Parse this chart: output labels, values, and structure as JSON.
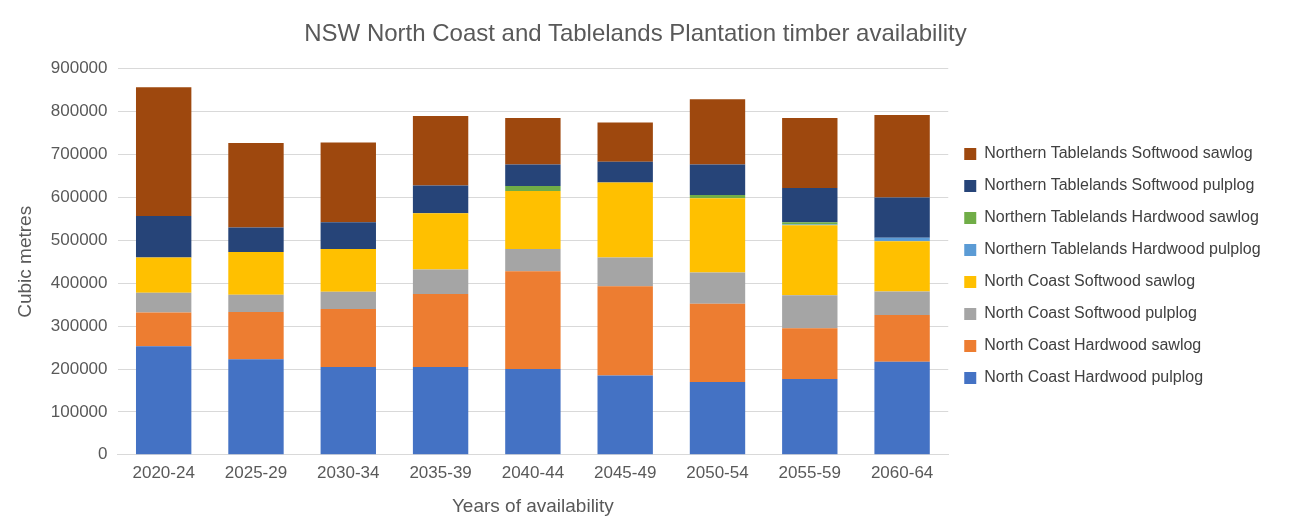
{
  "chart_data": {
    "type": "bar",
    "title": "NSW North Coast and Tablelands Plantation timber availability",
    "xlabel": "Years of availability",
    "ylabel": "Cubic metres",
    "categories": [
      "2020-24",
      "2025-29",
      "2030-34",
      "2035-39",
      "2040-44",
      "2045-49",
      "2050-54",
      "2055-59",
      "2060-64"
    ],
    "stacked": true,
    "ylim": [
      0,
      900000
    ],
    "yticks": [
      0,
      100000,
      200000,
      300000,
      400000,
      500000,
      600000,
      700000,
      800000,
      900000
    ],
    "grid": "y",
    "legend": "right",
    "series": [
      {
        "name": "North Coast Hardwood pulplog",
        "color": "#4472c4",
        "values": [
          253000,
          223000,
          205000,
          205000,
          200000,
          185000,
          170000,
          177000,
          217000
        ]
      },
      {
        "name": "North Coast Hardwood sawlog",
        "color": "#ed7d31",
        "values": [
          79000,
          110000,
          135000,
          170000,
          228000,
          208000,
          182000,
          118000,
          109000
        ]
      },
      {
        "name": "North Coast Softwood pulplog",
        "color": "#a5a5a5",
        "values": [
          46000,
          40000,
          40000,
          57000,
          52000,
          67000,
          73000,
          77000,
          55000
        ]
      },
      {
        "name": "North Coast Softwood sawlog",
        "color": "#ffc000",
        "values": [
          82000,
          100000,
          100000,
          131000,
          135000,
          175000,
          173000,
          163000,
          117000
        ]
      },
      {
        "name": "Northern Tablelands Hardwood pulplog",
        "color": "#5b9bd5",
        "values": [
          0,
          0,
          0,
          0,
          0,
          0,
          0,
          2000,
          8000
        ]
      },
      {
        "name": "Northern Tablelands Hardwood sawlog",
        "color": "#70ad47",
        "values": [
          0,
          0,
          0,
          0,
          12000,
          0,
          8000,
          5000,
          0
        ]
      },
      {
        "name": "Northern Tablelands Softwood pulplog",
        "color": "#264478",
        "values": [
          97000,
          57000,
          62000,
          65000,
          50000,
          48000,
          71000,
          80000,
          94000
        ]
      },
      {
        "name": "Northern Tablelands Softwood sawlog",
        "color": "#9e480e",
        "values": [
          300000,
          197000,
          186000,
          162000,
          108000,
          92000,
          152000,
          163000,
          192000
        ]
      }
    ]
  }
}
